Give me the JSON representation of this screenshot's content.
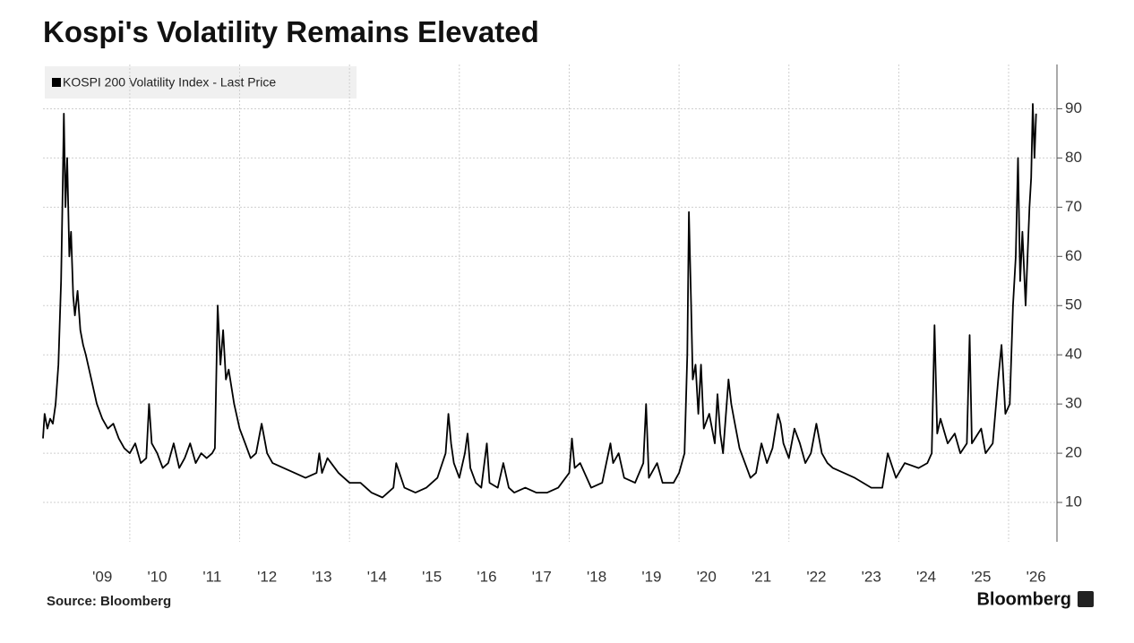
{
  "chart_data": {
    "type": "line",
    "title": "Kospi's Volatility Remains Elevated",
    "source": "Source: Bloomberg",
    "brand": "Bloomberg",
    "grid": true,
    "xlim": [
      2008.42,
      2026.88
    ],
    "ylim": [
      2,
      99
    ],
    "yticks": [
      10,
      20,
      30,
      40,
      50,
      60,
      70,
      80,
      90
    ],
    "xticks": [
      {
        "value": 2009,
        "label": "'09"
      },
      {
        "value": 2010,
        "label": "'10"
      },
      {
        "value": 2011,
        "label": "'11"
      },
      {
        "value": 2012,
        "label": "'12"
      },
      {
        "value": 2013,
        "label": "'13"
      },
      {
        "value": 2014,
        "label": "'14"
      },
      {
        "value": 2015,
        "label": "'15"
      },
      {
        "value": 2016,
        "label": "'16"
      },
      {
        "value": 2017,
        "label": "'17"
      },
      {
        "value": 2018,
        "label": "'18"
      },
      {
        "value": 2019,
        "label": "'19"
      },
      {
        "value": 2020,
        "label": "'20"
      },
      {
        "value": 2021,
        "label": "'21"
      },
      {
        "value": 2022,
        "label": "'22"
      },
      {
        "value": 2023,
        "label": "'23"
      },
      {
        "value": 2024,
        "label": "'24"
      },
      {
        "value": 2025,
        "label": "'25"
      },
      {
        "value": 2026,
        "label": "'26"
      }
    ],
    "x": [
      2008.42,
      2008.45,
      2008.5,
      2008.55,
      2008.6,
      2008.65,
      2008.7,
      2008.75,
      2008.78,
      2008.8,
      2008.83,
      2008.86,
      2008.9,
      2008.93,
      2008.97,
      2009.0,
      2009.05,
      2009.1,
      2009.15,
      2009.2,
      2009.3,
      2009.4,
      2009.5,
      2009.6,
      2009.7,
      2009.8,
      2009.9,
      2010.0,
      2010.1,
      2010.2,
      2010.3,
      2010.35,
      2010.4,
      2010.5,
      2010.6,
      2010.7,
      2010.8,
      2010.9,
      2011.0,
      2011.1,
      2011.2,
      2011.3,
      2011.4,
      2011.5,
      2011.55,
      2011.6,
      2011.65,
      2011.7,
      2011.75,
      2011.8,
      2011.9,
      2012.0,
      2012.1,
      2012.2,
      2012.3,
      2012.4,
      2012.5,
      2012.6,
      2012.8,
      2013.0,
      2013.2,
      2013.4,
      2013.45,
      2013.5,
      2013.6,
      2013.8,
      2014.0,
      2014.2,
      2014.4,
      2014.6,
      2014.8,
      2014.85,
      2015.0,
      2015.2,
      2015.4,
      2015.6,
      2015.75,
      2015.8,
      2015.85,
      2015.9,
      2016.0,
      2016.1,
      2016.15,
      2016.2,
      2016.3,
      2016.4,
      2016.5,
      2016.55,
      2016.7,
      2016.8,
      2016.9,
      2017.0,
      2017.2,
      2017.4,
      2017.6,
      2017.8,
      2018.0,
      2018.05,
      2018.1,
      2018.2,
      2018.4,
      2018.6,
      2018.75,
      2018.8,
      2018.9,
      2019.0,
      2019.2,
      2019.35,
      2019.4,
      2019.45,
      2019.6,
      2019.7,
      2019.9,
      2020.0,
      2020.1,
      2020.15,
      2020.18,
      2020.22,
      2020.25,
      2020.3,
      2020.35,
      2020.4,
      2020.45,
      2020.55,
      2020.65,
      2020.7,
      2020.75,
      2020.8,
      2020.9,
      2020.95,
      2021.0,
      2021.1,
      2021.2,
      2021.3,
      2021.4,
      2021.5,
      2021.6,
      2021.7,
      2021.8,
      2021.85,
      2021.9,
      2022.0,
      2022.1,
      2022.2,
      2022.3,
      2022.4,
      2022.5,
      2022.6,
      2022.7,
      2022.8,
      2023.0,
      2023.2,
      2023.5,
      2023.7,
      2023.8,
      2023.95,
      2024.11,
      2024.36,
      2024.52,
      2024.6,
      2024.65,
      2024.7,
      2024.76,
      2024.89,
      2025.02,
      2025.12,
      2025.24,
      2025.29,
      2025.33,
      2025.5,
      2025.58,
      2025.71,
      2025.81,
      2025.87,
      2025.94,
      2026.02,
      2026.08,
      2026.13,
      2026.17,
      2026.21,
      2026.25,
      2026.31,
      2026.38,
      2026.41,
      2026.44,
      2026.47,
      2026.5
    ],
    "series": [
      {
        "name": "KOSPI 200 Volatility Index - Last Price",
        "color": "#000000",
        "values": [
          23,
          28,
          25,
          27,
          26,
          30,
          38,
          55,
          75,
          89,
          70,
          80,
          60,
          65,
          52,
          48,
          53,
          45,
          42,
          40,
          35,
          30,
          27,
          25,
          26,
          23,
          21,
          20,
          22,
          18,
          19,
          30,
          22,
          20,
          17,
          18,
          22,
          17,
          19,
          22,
          18,
          20,
          19,
          20,
          21,
          50,
          38,
          45,
          35,
          37,
          30,
          25,
          22,
          19,
          20,
          26,
          20,
          18,
          17,
          16,
          15,
          16,
          20,
          16,
          19,
          16,
          14,
          14,
          12,
          11,
          13,
          18,
          13,
          12,
          13,
          15,
          20,
          28,
          22,
          18,
          15,
          20,
          24,
          17,
          14,
          13,
          22,
          14,
          13,
          18,
          13,
          12,
          13,
          12,
          12,
          13,
          16,
          23,
          17,
          18,
          13,
          14,
          22,
          18,
          20,
          15,
          14,
          18,
          30,
          15,
          18,
          14,
          14,
          16,
          20,
          40,
          69,
          50,
          35,
          38,
          28,
          38,
          25,
          28,
          22,
          32,
          24,
          20,
          35,
          30,
          27,
          21,
          18,
          15,
          16,
          22,
          18,
          21,
          28,
          26,
          22,
          19,
          25,
          22,
          18,
          20,
          26,
          20,
          18,
          17,
          16,
          15,
          13,
          13,
          20,
          15,
          18,
          17,
          18,
          20,
          46,
          24,
          27,
          22,
          24,
          20,
          22,
          44,
          22,
          25,
          20,
          22,
          35,
          42,
          28,
          30,
          50,
          60,
          80,
          55,
          65,
          50,
          70,
          76,
          91,
          80,
          89
        ]
      }
    ]
  }
}
